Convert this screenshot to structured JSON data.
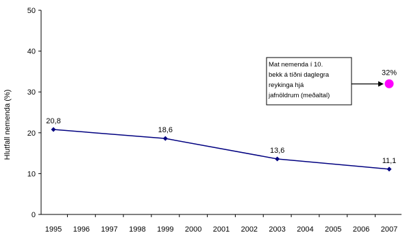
{
  "chart_data": {
    "type": "line",
    "ylabel": "Hlutfall nemenda (%)",
    "xlabel": "",
    "ylim": [
      0,
      50
    ],
    "yticks": [
      0,
      10,
      20,
      30,
      40,
      50
    ],
    "xticks": [
      1995,
      1996,
      1997,
      1998,
      1999,
      2000,
      2001,
      2002,
      2003,
      2004,
      2005,
      2006,
      2007
    ],
    "grid": false,
    "series": [
      {
        "color": "#000080",
        "x": [
          1995,
          1999,
          2003,
          2007
        ],
        "y": [
          20.8,
          18.6,
          13.6,
          11.1
        ],
        "labels": [
          "20,8",
          "18,6",
          "13,6",
          "11,1"
        ]
      }
    ],
    "highlight": {
      "x": 2007,
      "y": 32,
      "label": "32%",
      "color": "#ff00ff"
    },
    "annotation": {
      "lines": [
        "Mat nemenda í 10.",
        "bekk á tíðni daglegra",
        "reykinga hjá",
        "jafnöldrum (meðaltal)"
      ]
    }
  }
}
